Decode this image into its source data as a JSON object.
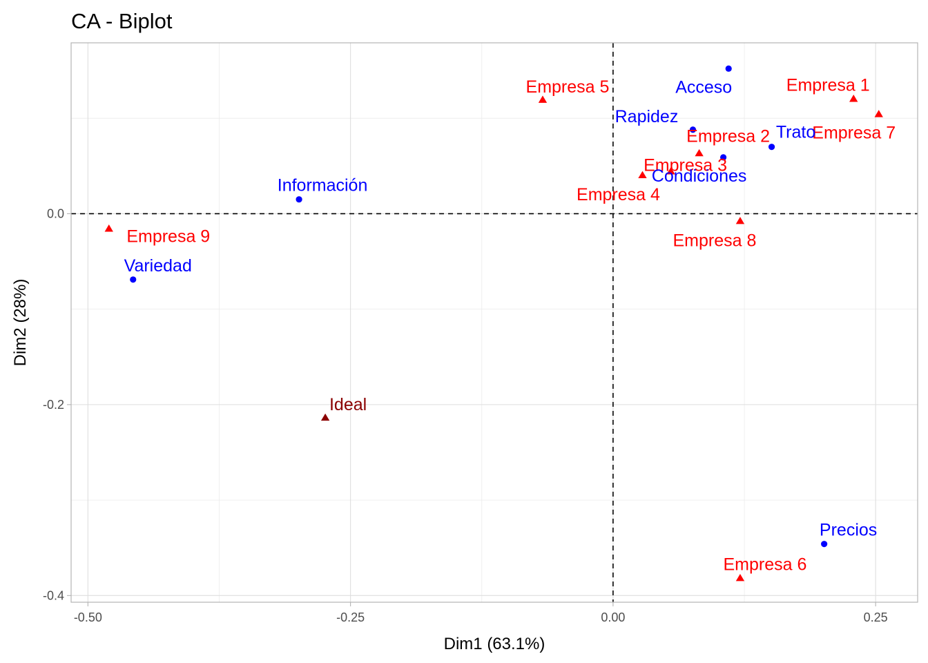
{
  "chart_data": {
    "type": "scatter",
    "title": "CA - Biplot",
    "xlabel": "Dim1 (63.1%)",
    "ylabel": "Dim2 (28%)",
    "xlim": [
      -0.516,
      0.29
    ],
    "ylim": [
      -0.407,
      0.179
    ],
    "x_ticks": [
      -0.5,
      -0.25,
      0.0,
      0.25
    ],
    "x_tick_labels": [
      "-0.50",
      "-0.25",
      "0.00",
      "0.25"
    ],
    "y_ticks": [
      0.0,
      -0.2,
      -0.4
    ],
    "y_tick_labels": [
      "0.0",
      "-0.2",
      "-0.4"
    ],
    "x_minor_grid": [
      -0.375,
      -0.125,
      0.125
    ],
    "y_minor_grid": [
      0.1,
      -0.1,
      -0.3
    ],
    "grid": true,
    "reference_lines": {
      "x": 0,
      "y": 0,
      "style": "dashed"
    },
    "legend": "none",
    "colors": {
      "rows": "#FF0000",
      "columns": "#0000FF",
      "supplementary": "#8B0000"
    },
    "series": [
      {
        "name": "rows",
        "marker": "triangle",
        "color": "#FF0000",
        "points": [
          {
            "label": "Empresa 1",
            "x": 0.229,
            "y": 0.12
          },
          {
            "label": "Empresa 2",
            "x": 0.082,
            "y": 0.063
          },
          {
            "label": "Empresa 3",
            "x": 0.055,
            "y": 0.044
          },
          {
            "label": "Empresa 4",
            "x": 0.028,
            "y": 0.04
          },
          {
            "label": "Empresa 5",
            "x": -0.067,
            "y": 0.119
          },
          {
            "label": "Empresa 6",
            "x": 0.121,
            "y": -0.382
          },
          {
            "label": "Empresa 7",
            "x": 0.253,
            "y": 0.104
          },
          {
            "label": "Empresa 8",
            "x": 0.121,
            "y": -0.008
          },
          {
            "label": "Empresa 9",
            "x": -0.48,
            "y": -0.016
          }
        ]
      },
      {
        "name": "supplementary rows",
        "marker": "triangle",
        "color": "#8B0000",
        "points": [
          {
            "label": "Ideal",
            "x": -0.274,
            "y": -0.214
          }
        ]
      },
      {
        "name": "columns",
        "marker": "circle",
        "color": "#0000FF",
        "points": [
          {
            "label": "Acceso",
            "x": 0.11,
            "y": 0.152
          },
          {
            "label": "Rapidez",
            "x": 0.076,
            "y": 0.088
          },
          {
            "label": "Condiciones",
            "x": 0.105,
            "y": 0.059
          },
          {
            "label": "Trato",
            "x": 0.151,
            "y": 0.07
          },
          {
            "label": "Información",
            "x": -0.299,
            "y": 0.015
          },
          {
            "label": "Variedad",
            "x": -0.457,
            "y": -0.069
          },
          {
            "label": "Precios",
            "x": 0.201,
            "y": -0.346
          }
        ]
      }
    ]
  }
}
